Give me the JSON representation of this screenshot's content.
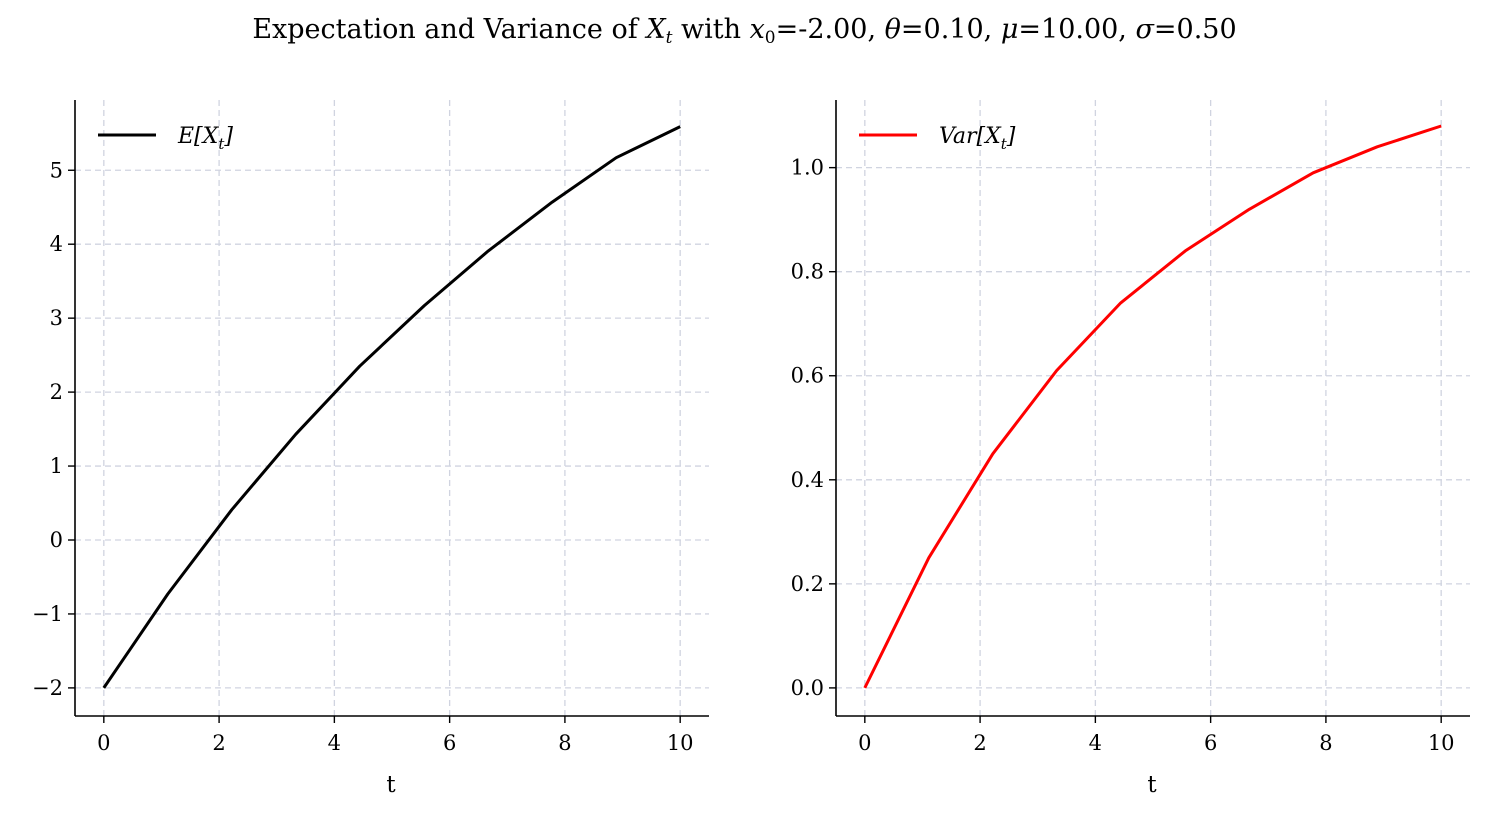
{
  "title": {
    "prefix": "Expectation and Variance of ",
    "var_symbol": "X",
    "var_sub": "t",
    "mid": " with ",
    "x0_symbol": "x",
    "x0_sub": "0",
    "x0_value": "=-2.00, ",
    "theta_symbol": "θ",
    "theta_value": "=0.10, ",
    "mu_symbol": "μ",
    "mu_value": "=10.00, ",
    "sigma_symbol": "σ",
    "sigma_value": "=0.50"
  },
  "colors": {
    "expectation": "#000000",
    "variance": "#ff0000",
    "grid": "#d0d4e0"
  },
  "chart_data": [
    {
      "type": "line",
      "xlabel": "t",
      "ylabel": "",
      "xlim": [
        -0.5,
        10.5
      ],
      "ylim": [
        -2.38,
        5.95
      ],
      "xticks": [
        0,
        2,
        4,
        6,
        8,
        10
      ],
      "xtick_labels": [
        "0",
        "2",
        "4",
        "6",
        "8",
        "10"
      ],
      "yticks": [
        -2,
        -1,
        0,
        1,
        2,
        3,
        4,
        5
      ],
      "ytick_labels": [
        "−2",
        "−1",
        "0",
        "1",
        "2",
        "3",
        "4",
        "5"
      ],
      "grid": true,
      "legend_position": "top-left",
      "series": [
        {
          "name": "E[X_t]",
          "x": [
            0,
            1.11,
            2.22,
            3.33,
            4.44,
            5.56,
            6.67,
            7.78,
            8.89,
            10
          ],
          "values": [
            -2.0,
            -0.73,
            0.41,
            1.43,
            2.35,
            3.17,
            3.91,
            4.57,
            5.17,
            5.59
          ]
        }
      ]
    },
    {
      "type": "line",
      "xlabel": "t",
      "ylabel": "",
      "xlim": [
        -0.5,
        10.5
      ],
      "ylim": [
        -0.054,
        1.13
      ],
      "xticks": [
        0,
        2,
        4,
        6,
        8,
        10
      ],
      "xtick_labels": [
        "0",
        "2",
        "4",
        "6",
        "8",
        "10"
      ],
      "yticks": [
        0.0,
        0.2,
        0.4,
        0.6,
        0.8,
        1.0
      ],
      "ytick_labels": [
        "0.0",
        "0.2",
        "0.4",
        "0.6",
        "0.8",
        "1.0"
      ],
      "grid": true,
      "legend_position": "top-left",
      "series": [
        {
          "name": "Var[X_t]",
          "x": [
            0,
            1.11,
            2.22,
            3.33,
            4.44,
            5.56,
            6.67,
            7.78,
            8.89,
            10
          ],
          "values": [
            0.0,
            0.25,
            0.45,
            0.61,
            0.74,
            0.84,
            0.92,
            0.99,
            1.04,
            1.08
          ]
        }
      ]
    }
  ]
}
